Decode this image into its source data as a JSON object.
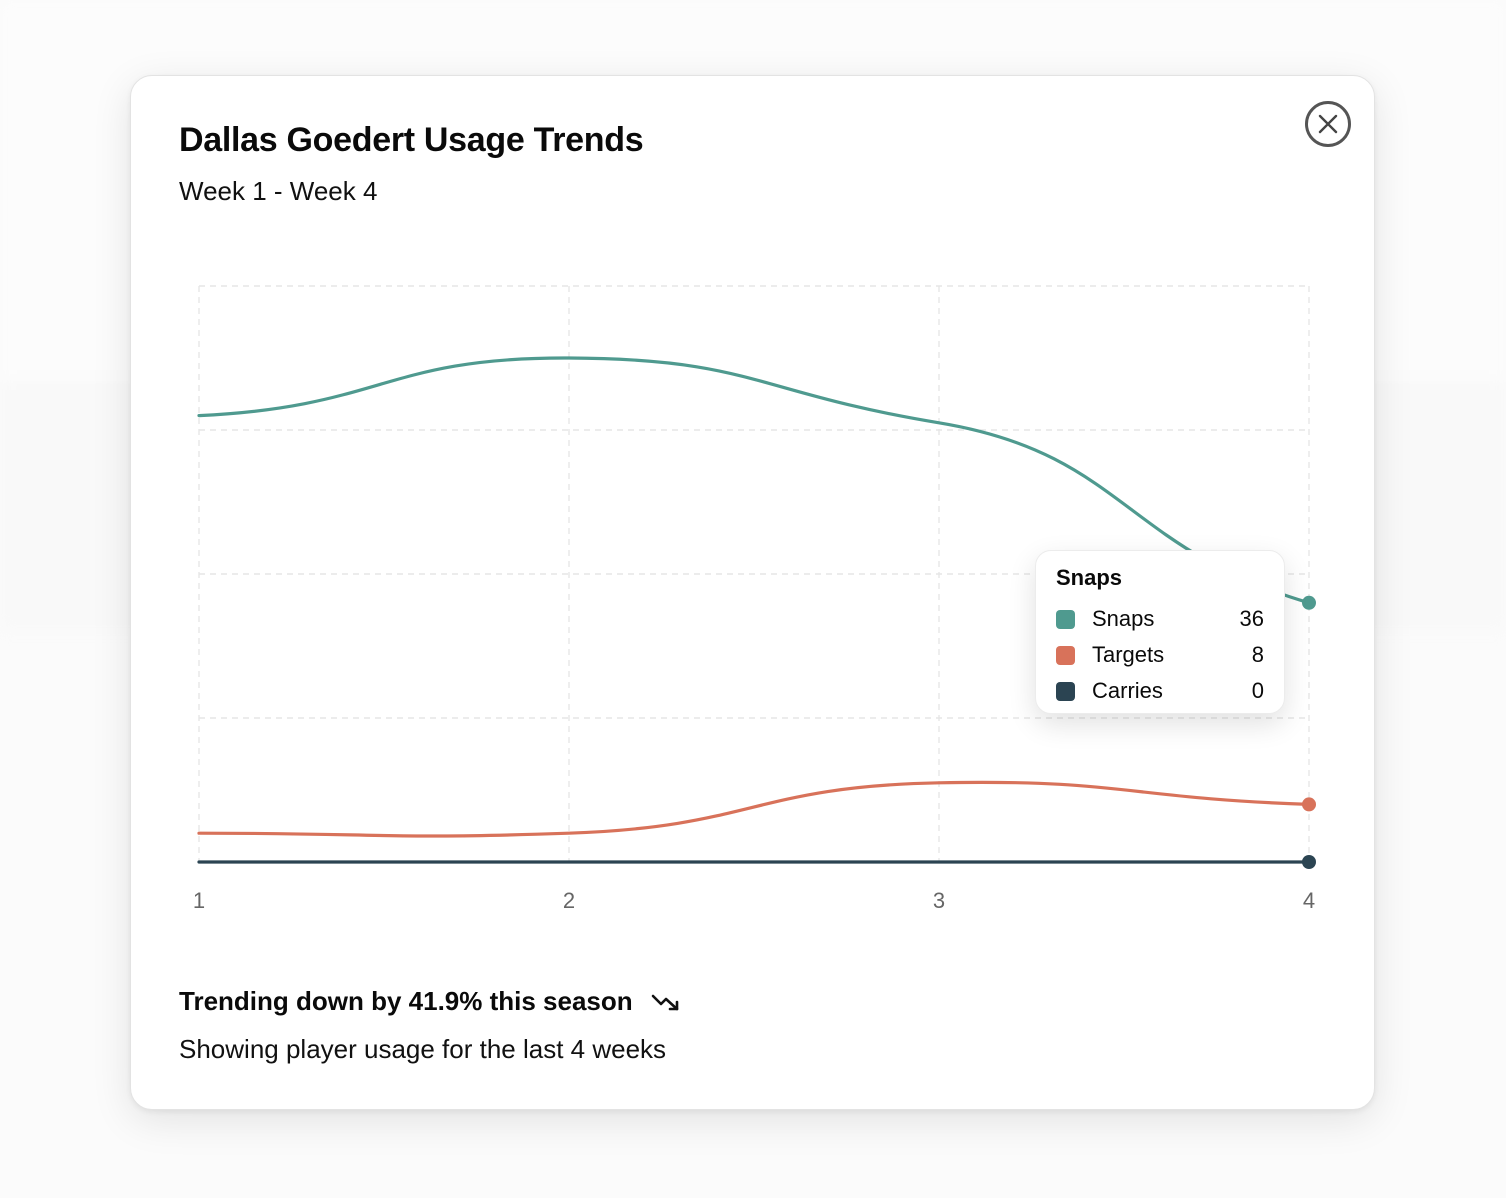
{
  "modal": {
    "title": "Dallas Goedert Usage Trends",
    "subtitle": "Week 1 - Week 4",
    "close_icon": "close-icon",
    "trend_text": "Trending down by 41.9% this season",
    "trend_icon": "trending-down-icon",
    "caption": "Showing player usage for the last 4 weeks"
  },
  "chart_data": {
    "type": "line",
    "x": [
      1,
      2,
      3,
      4
    ],
    "xlabel": "",
    "ylabel": "",
    "ylim": [
      0,
      80
    ],
    "grid": true,
    "series": [
      {
        "name": "Snaps",
        "color": "#4f9a8f",
        "values": [
          62,
          70,
          61,
          36
        ]
      },
      {
        "name": "Targets",
        "color": "#d8725a",
        "values": [
          4,
          4,
          11,
          8
        ]
      },
      {
        "name": "Carries",
        "color": "#2b4452",
        "values": [
          0,
          0,
          0,
          0
        ]
      }
    ]
  },
  "tooltip": {
    "title": "Snaps",
    "rows": [
      {
        "name": "Snaps",
        "value": "36",
        "color": "#4f9a8f"
      },
      {
        "name": "Targets",
        "value": "8",
        "color": "#d8725a"
      },
      {
        "name": "Carries",
        "value": "0",
        "color": "#2b4452"
      }
    ]
  }
}
